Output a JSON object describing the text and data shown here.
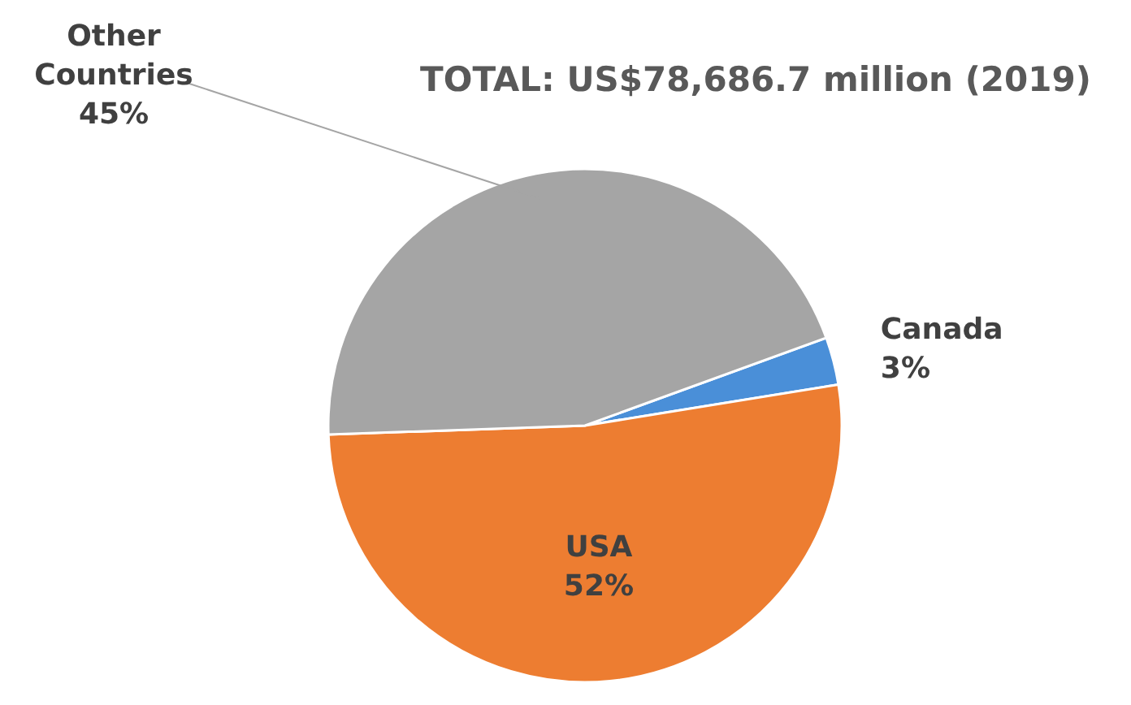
{
  "chart_data": {
    "type": "pie",
    "title": "TOTAL: US$78,686.7 million (2019)",
    "categories": [
      "Canada",
      "USA",
      "Other Countries"
    ],
    "values": [
      3,
      52,
      45
    ],
    "colors": [
      "#4a8fd8",
      "#ed7d31",
      "#a5a5a5"
    ],
    "value_labels": [
      "3%",
      "52%",
      "45%"
    ]
  }
}
